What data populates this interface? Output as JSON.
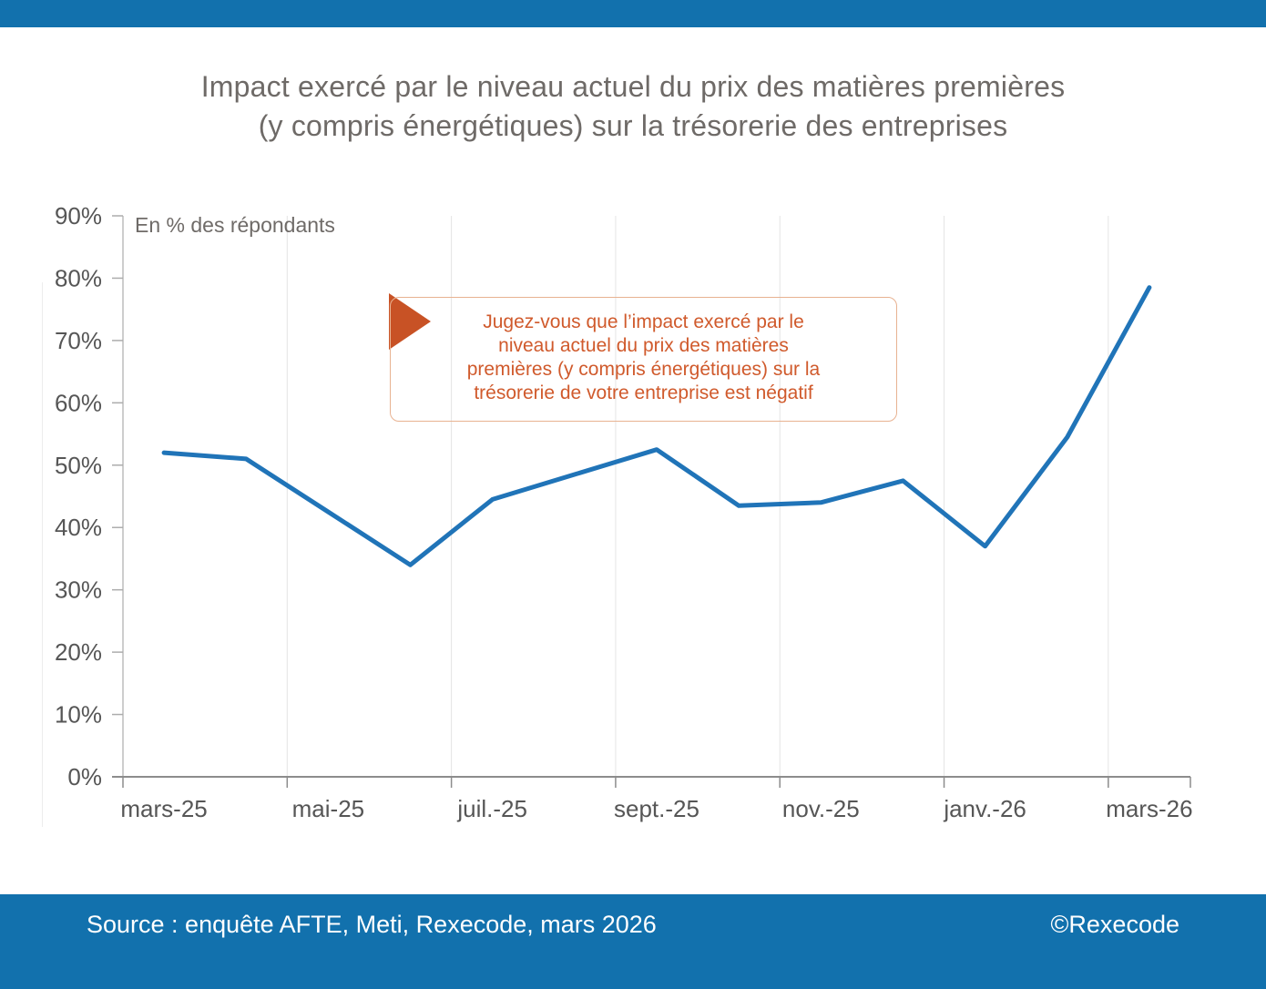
{
  "header": {
    "title_lines": [
      "Impact exercé par le niveau actuel du prix des matières premières",
      "(y compris énergétiques) sur la trésorerie des entreprises"
    ]
  },
  "chart_data": {
    "type": "line",
    "unit_label": "En % des répondants",
    "x": [
      "mars-25",
      "avr.-25",
      "mai-25",
      "juin-25",
      "juil.-25",
      "août-25",
      "sept.-25",
      "oct.-25",
      "nov.-25",
      "déc.-25",
      "janv.-26",
      "févr.-26",
      "mars-26"
    ],
    "values": [
      52,
      51,
      42.5,
      34,
      44.5,
      48.5,
      52.5,
      43.5,
      44,
      47.5,
      37,
      54.5,
      78.5
    ],
    "x_tick_labels": [
      "mars-25",
      "mai-25",
      "juil.-25",
      "sept.-25",
      "nov.-25",
      "janv.-26",
      "mars-26"
    ],
    "y_tick_labels": [
      "0%",
      "10%",
      "20%",
      "30%",
      "40%",
      "50%",
      "60%",
      "70%",
      "80%",
      "90%"
    ],
    "ylim": [
      0,
      90
    ],
    "grid": "vertical",
    "legend": "none",
    "line_color": "#2074B8",
    "annotation": {
      "lines": [
        "Jugez-vous que l’impact exercé par le",
        "niveau actuel du prix des matières",
        "premières (y compris énergétiques) sur la",
        "trésorerie de votre entreprise est négatif"
      ],
      "text_color": "#D05A2C",
      "arrow_color": "#C85225",
      "border_color": "#E8B291"
    }
  },
  "footer": {
    "source": "Source : enquête AFTE, Meti, Rexecode, mars 2026",
    "copyright": "©Rexecode"
  },
  "colors": {
    "brand_blue": "#1271AD",
    "line_blue": "#2074B8",
    "accent_orange": "#C85225",
    "title_gray": "#6E6A67",
    "axis_gray": "#565656",
    "gridline_gray": "#E4E4E4"
  }
}
